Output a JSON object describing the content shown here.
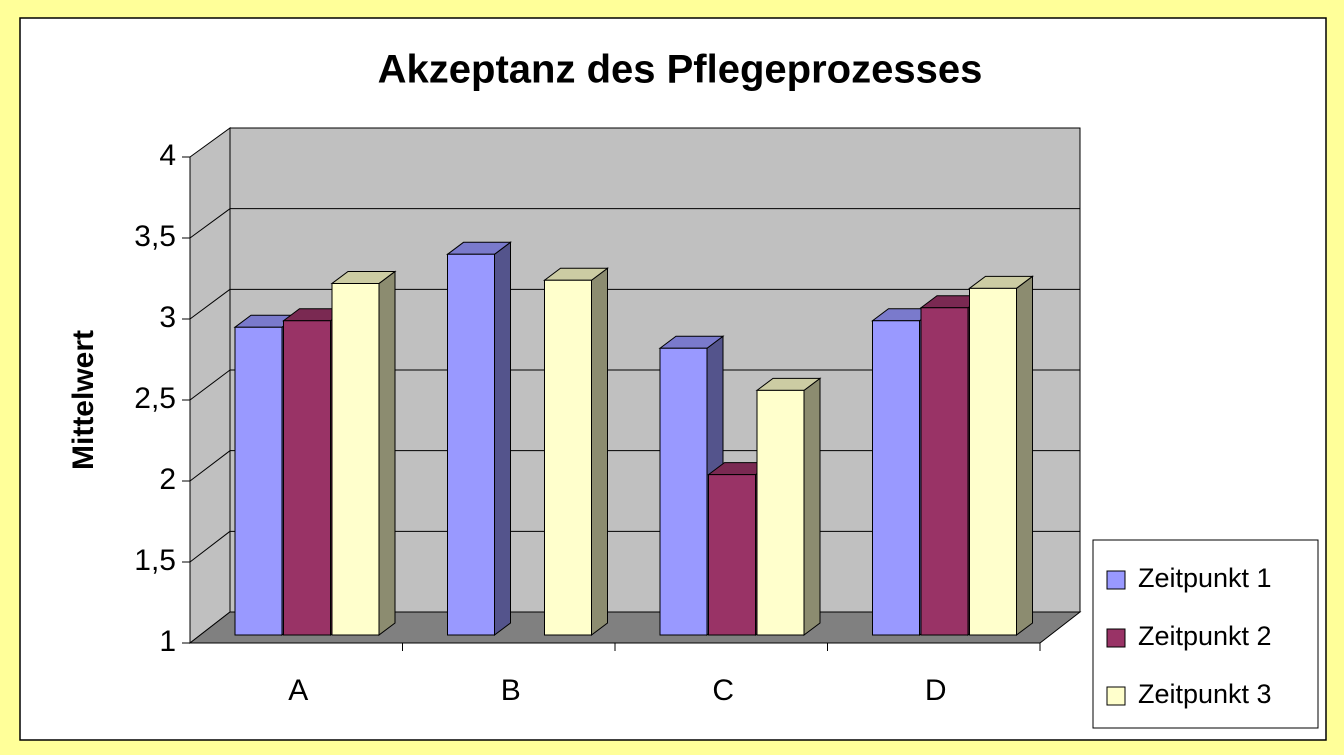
{
  "chart_data": {
    "type": "bar3d",
    "title": "Akzeptanz des Pflegeprozesses",
    "y_label": "Mittelwert",
    "categories": [
      "A",
      "B",
      "C",
      "D"
    ],
    "series": [
      {
        "name": "Zeitpunkt 1",
        "color": "#9999ff",
        "values": [
          2.9,
          3.35,
          2.77,
          2.94
        ]
      },
      {
        "name": "Zeitpunkt 2",
        "color": "#993366",
        "values": [
          2.94,
          null,
          1.99,
          3.02
        ]
      },
      {
        "name": "Zeitpunkt 3",
        "color": "#ffffcc",
        "values": [
          3.17,
          3.19,
          2.51,
          3.14
        ]
      }
    ],
    "ylim": [
      1,
      4
    ],
    "yticks": [
      1,
      {
        "value": 1.5,
        "label": "1,5"
      },
      2,
      {
        "value": 2.5,
        "label": "2,5"
      },
      3,
      {
        "value": 3.5,
        "label": "3,5"
      },
      4
    ],
    "grid": true,
    "legend": "bottom-right"
  }
}
